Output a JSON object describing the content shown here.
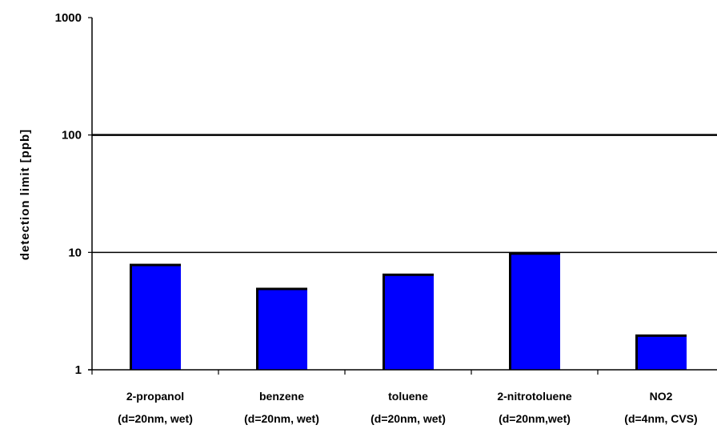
{
  "chart_data": {
    "type": "bar",
    "title": "",
    "xlabel": "",
    "ylabel": "detection limit [ppb]",
    "y_scale": "log",
    "ylim": [
      1,
      1000
    ],
    "y_ticks": [
      "1",
      "10",
      "100",
      "1000"
    ],
    "grid": "horizontal major gridlines",
    "legend": "none",
    "bar_color": "#0000ff",
    "categories": [
      {
        "name": "2-propanol",
        "detail": "(d=20nm, wet)"
      },
      {
        "name": "benzene",
        "detail": "(d=20nm, wet)"
      },
      {
        "name": "toluene",
        "detail": "(d=20nm, wet)"
      },
      {
        "name": "2-nitrotoluene",
        "detail": "(d=20nm,wet)"
      },
      {
        "name": "NO2",
        "detail": "(d=4nm, CVS)"
      }
    ],
    "values": [
      8,
      5,
      6.6,
      10,
      2
    ]
  }
}
